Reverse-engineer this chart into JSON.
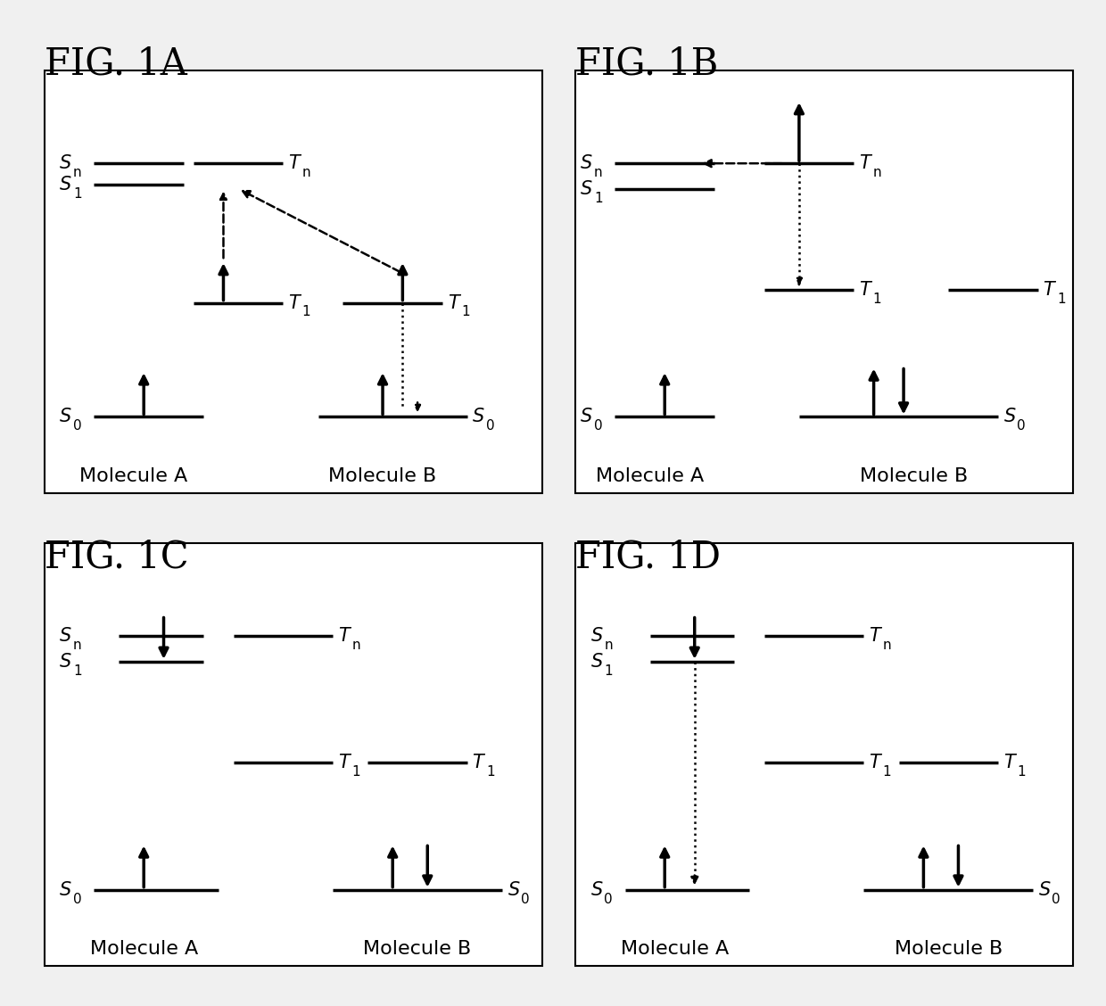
{
  "bg_color": "#f0f0f0",
  "panel_bg": "#ffffff",
  "text_color": "#000000",
  "fig_labels": [
    "FIG. 1A",
    "FIG. 1B",
    "FIG. 1C",
    "FIG. 1D"
  ],
  "fig_label_fontsize": 30,
  "level_fontsize": 15,
  "mol_label_fontsize": 16
}
